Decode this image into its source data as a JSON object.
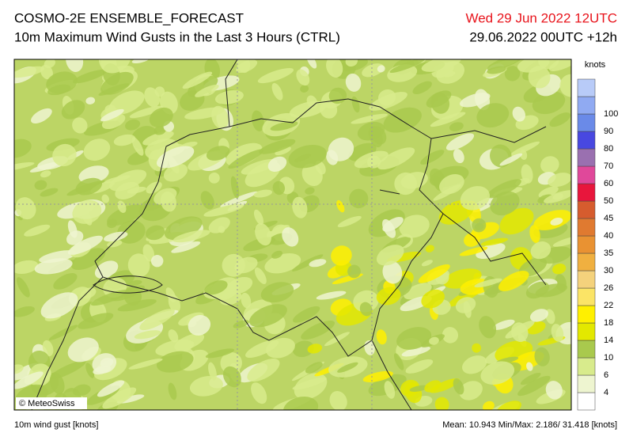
{
  "header": {
    "title": "COSMO-2E ENSEMBLE_FORECAST",
    "subtitle": "10m Maximum Wind Gusts in the Last 3 Hours (CTRL)",
    "valid_time": "Wed 29 Jun 2022 12UTC",
    "run_time": "29.06.2022 00UTC +12h"
  },
  "legend": {
    "unit": "knots",
    "labels": [
      4,
      6,
      10,
      14,
      18,
      22,
      26,
      30,
      35,
      40,
      45,
      50,
      60,
      70,
      80,
      90,
      100
    ],
    "colors": [
      "#ffffff",
      "#eef5d0",
      "#d8eb8c",
      "#a9c94d",
      "#e3e800",
      "#fff000",
      "#fbe466",
      "#f4d27c",
      "#f0b040",
      "#e99232",
      "#e07a30",
      "#d65c2e",
      "#e8163c",
      "#e0489a",
      "#9a70b0",
      "#4848e0",
      "#6a8ae8",
      "#90aaf2",
      "#b8cbf8"
    ]
  },
  "map": {
    "credit": "© MeteoSwiss"
  },
  "footer": {
    "left": "10m wind gust [knots]",
    "right": "Mean: 10.943 Min/Max: 2.186/ 31.418 [knots]"
  }
}
